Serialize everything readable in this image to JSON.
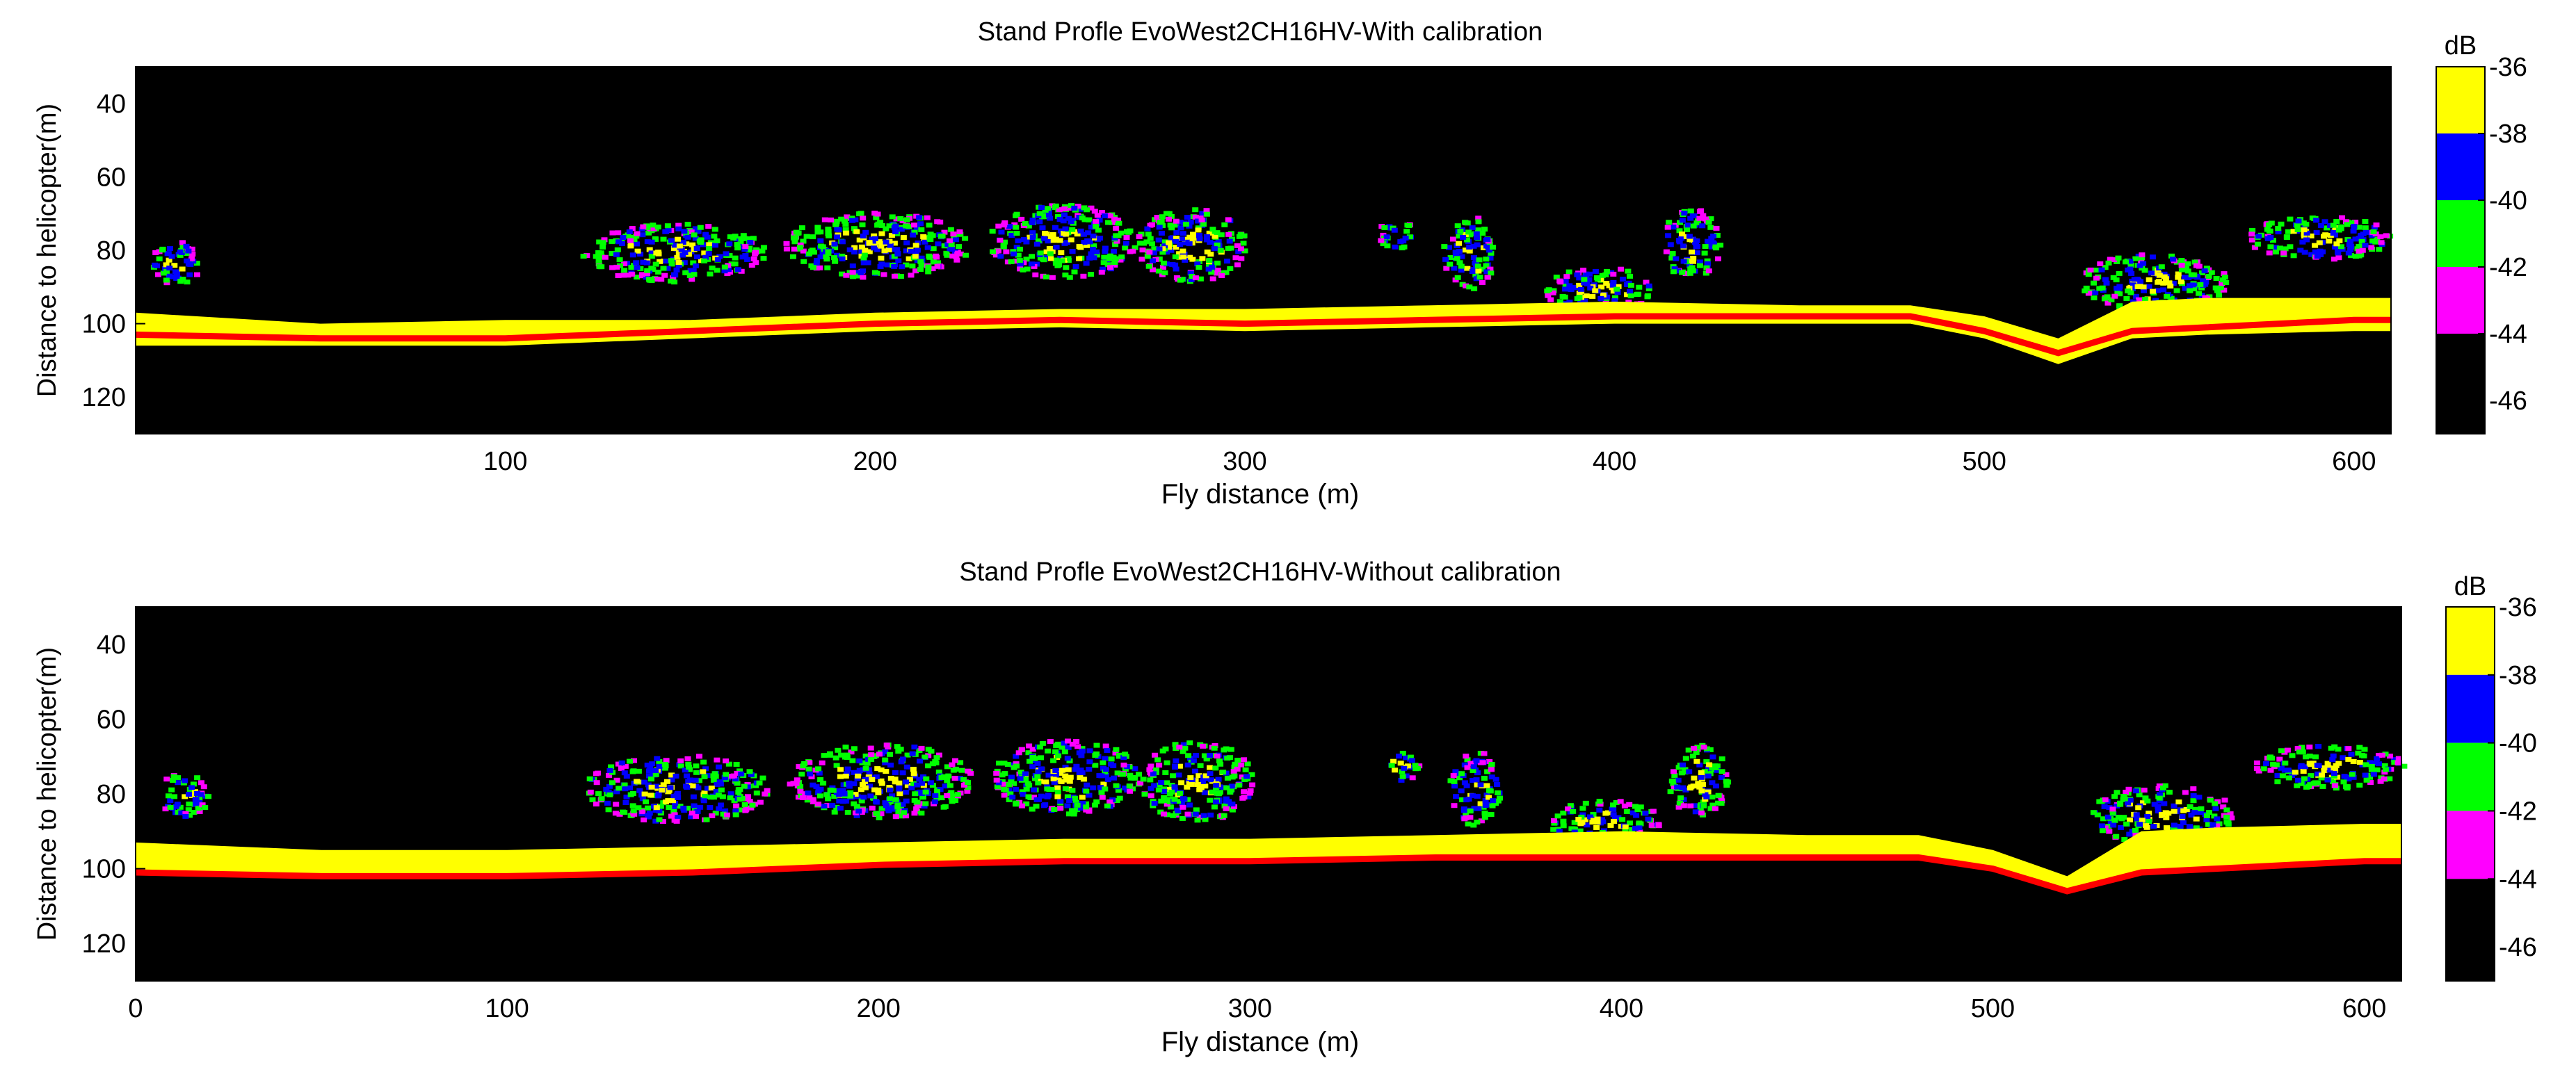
{
  "chart_data": [
    {
      "type": "heatmap",
      "title": "Stand Profle EvoWest2CH16HV-With calibration",
      "xlabel": "Fly distance (m)",
      "ylabel": "Distance to helicopter(m)",
      "xlim": [
        0,
        610
      ],
      "ylim": [
        30,
        130
      ],
      "y_reversed": true,
      "x_ticks": [
        100,
        200,
        300,
        400,
        500,
        600
      ],
      "y_ticks": [
        40,
        60,
        80,
        100,
        120
      ],
      "colorbar": {
        "label": "dB",
        "ticks": [
          -36,
          -38,
          -40,
          -42,
          -44,
          -46
        ],
        "levels": [
          {
            "range": [
              -38,
              -36
            ],
            "color": "#ffff00"
          },
          {
            "range": [
              -40,
              -38
            ],
            "color": "#0000ff"
          },
          {
            "range": [
              -42,
              -40
            ],
            "color": "#00ff00"
          },
          {
            "range": [
              -44,
              -42
            ],
            "color": "#ff00ff"
          },
          {
            "range": [
              -47,
              -44
            ],
            "color": "#000000"
          }
        ]
      },
      "ground_line": {
        "color": "#ff0000",
        "x": [
          0,
          50,
          100,
          150,
          200,
          250,
          300,
          350,
          400,
          450,
          480,
          500,
          520,
          540,
          560,
          600,
          610
        ],
        "y": [
          103,
          104,
          104,
          102,
          100,
          99,
          100,
          99,
          98,
          98,
          98,
          102,
          108,
          102,
          101,
          99,
          99
        ]
      },
      "strong_return_band": {
        "color": "#ffff00",
        "x": [
          0,
          50,
          100,
          150,
          200,
          250,
          300,
          350,
          400,
          450,
          480,
          500,
          520,
          540,
          560,
          600,
          610
        ],
        "y_top": [
          97,
          100,
          99,
          99,
          97,
          96,
          96,
          95,
          94,
          95,
          95,
          98,
          104,
          94,
          93,
          93,
          93
        ],
        "y_bottom": [
          106,
          106,
          106,
          104,
          102,
          101,
          102,
          101,
          100,
          100,
          100,
          104,
          111,
          104,
          103,
          102,
          102
        ]
      },
      "canopy_clusters": [
        {
          "x_center": 10,
          "y_center": 83,
          "x_halfwidth": 7,
          "y_halfwidth": 6
        },
        {
          "x_center": 145,
          "y_center": 80,
          "x_halfwidth": 25,
          "y_halfwidth": 8
        },
        {
          "x_center": 200,
          "y_center": 78,
          "x_halfwidth": 25,
          "y_halfwidth": 9
        },
        {
          "x_center": 250,
          "y_center": 77,
          "x_halfwidth": 20,
          "y_halfwidth": 10
        },
        {
          "x_center": 285,
          "y_center": 78,
          "x_halfwidth": 15,
          "y_halfwidth": 10
        },
        {
          "x_center": 340,
          "y_center": 75,
          "x_halfwidth": 5,
          "y_halfwidth": 4
        },
        {
          "x_center": 360,
          "y_center": 80,
          "x_halfwidth": 7,
          "y_halfwidth": 10
        },
        {
          "x_center": 395,
          "y_center": 90,
          "x_halfwidth": 15,
          "y_halfwidth": 6
        },
        {
          "x_center": 420,
          "y_center": 78,
          "x_halfwidth": 8,
          "y_halfwidth": 10
        },
        {
          "x_center": 545,
          "y_center": 88,
          "x_halfwidth": 20,
          "y_halfwidth": 8
        },
        {
          "x_center": 590,
          "y_center": 76,
          "x_halfwidth": 20,
          "y_halfwidth": 6
        }
      ]
    },
    {
      "type": "heatmap",
      "title": "Stand Profle EvoWest2CH16HV-Without calibration",
      "xlabel": "Fly distance (m)",
      "ylabel": "Distance to helicopter(m)",
      "xlim": [
        0,
        610
      ],
      "ylim": [
        30,
        130
      ],
      "y_reversed": true,
      "x_ticks": [
        0,
        100,
        200,
        300,
        400,
        500,
        600
      ],
      "y_ticks": [
        40,
        60,
        80,
        100,
        120
      ],
      "colorbar": {
        "label": "dB",
        "ticks": [
          -36,
          -38,
          -40,
          -42,
          -44,
          -46
        ],
        "levels": [
          {
            "range": [
              -38,
              -36
            ],
            "color": "#ffff00"
          },
          {
            "range": [
              -40,
              -38
            ],
            "color": "#0000ff"
          },
          {
            "range": [
              -42,
              -40
            ],
            "color": "#00ff00"
          },
          {
            "range": [
              -44,
              -42
            ],
            "color": "#ff00ff"
          },
          {
            "range": [
              -47,
              -44
            ],
            "color": "#000000"
          }
        ]
      },
      "ground_line": {
        "color": "#ff0000",
        "x": [
          0,
          50,
          100,
          150,
          200,
          250,
          300,
          350,
          400,
          450,
          480,
          500,
          520,
          540,
          560,
          600,
          610
        ],
        "y": [
          101,
          102,
          102,
          101,
          99,
          98,
          98,
          97,
          97,
          97,
          97,
          100,
          106,
          101,
          100,
          98,
          98
        ]
      },
      "strong_return_band": {
        "color": "#ffff00",
        "x": [
          0,
          50,
          100,
          150,
          200,
          250,
          300,
          350,
          400,
          450,
          480,
          500,
          520,
          540,
          560,
          600,
          610
        ],
        "y_top": [
          93,
          95,
          95,
          94,
          93,
          92,
          92,
          91,
          90,
          91,
          91,
          95,
          102,
          90,
          89,
          88,
          88
        ],
        "y_bottom": [
          101,
          102,
          102,
          101,
          99,
          98,
          98,
          97,
          97,
          97,
          97,
          100,
          106,
          101,
          100,
          98,
          98
        ]
      },
      "canopy_clusters": [
        {
          "x_center": 12,
          "y_center": 80,
          "x_halfwidth": 7,
          "y_halfwidth": 6
        },
        {
          "x_center": 145,
          "y_center": 78,
          "x_halfwidth": 25,
          "y_halfwidth": 9
        },
        {
          "x_center": 200,
          "y_center": 76,
          "x_halfwidth": 25,
          "y_halfwidth": 10
        },
        {
          "x_center": 250,
          "y_center": 75,
          "x_halfwidth": 20,
          "y_halfwidth": 10
        },
        {
          "x_center": 285,
          "y_center": 76,
          "x_halfwidth": 15,
          "y_halfwidth": 11
        },
        {
          "x_center": 340,
          "y_center": 72,
          "x_halfwidth": 5,
          "y_halfwidth": 4
        },
        {
          "x_center": 360,
          "y_center": 78,
          "x_halfwidth": 7,
          "y_halfwidth": 10
        },
        {
          "x_center": 395,
          "y_center": 87,
          "x_halfwidth": 15,
          "y_halfwidth": 6
        },
        {
          "x_center": 420,
          "y_center": 76,
          "x_halfwidth": 8,
          "y_halfwidth": 10
        },
        {
          "x_center": 545,
          "y_center": 85,
          "x_halfwidth": 20,
          "y_halfwidth": 8
        },
        {
          "x_center": 590,
          "y_center": 72,
          "x_halfwidth": 20,
          "y_halfwidth": 6
        }
      ]
    }
  ]
}
